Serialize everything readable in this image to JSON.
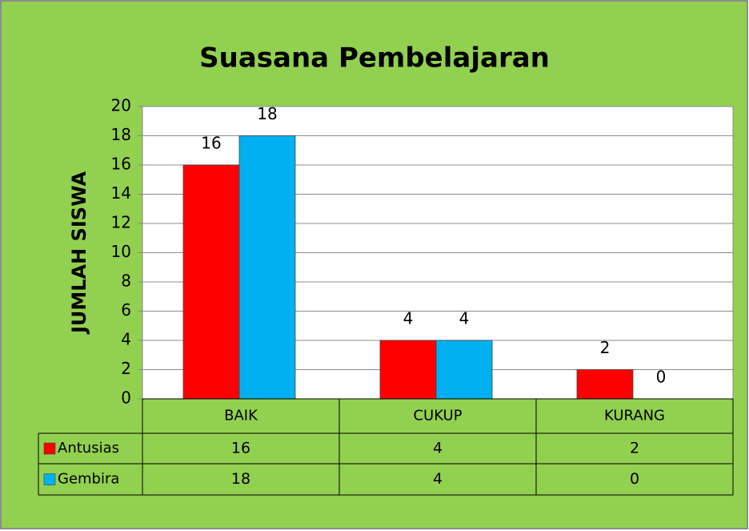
{
  "chart_data": {
    "type": "bar",
    "title": "Suasana Pembelajaran",
    "y_label": "JUMLAH SISWA",
    "categories": [
      "BAIK",
      "CUKUP",
      "KURANG"
    ],
    "series": [
      {
        "name": "Antusias",
        "color": "#ff0000",
        "values": [
          16,
          4,
          2
        ]
      },
      {
        "name": "Gembira",
        "color": "#00b0f0",
        "values": [
          18,
          4,
          0
        ]
      }
    ],
    "ylim": [
      0,
      20
    ],
    "yticks": [
      0,
      2,
      4,
      6,
      8,
      10,
      12,
      14,
      16,
      18,
      20
    ],
    "grid": true,
    "data_table": true
  }
}
